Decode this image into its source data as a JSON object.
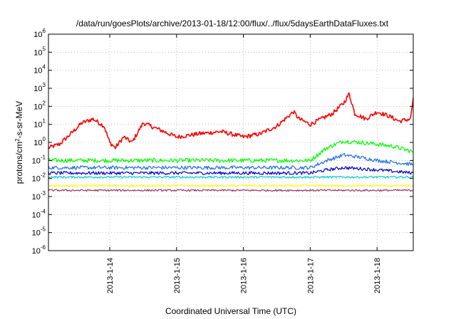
{
  "chart_data": {
    "type": "line",
    "title": "/data/run/goesPlots/archive/2013-01-18/12:00/flux/../flux/5daysEarthDataFluxes.txt",
    "xlabel": "Coordinated Universal Time (UTC)",
    "ylabel": {
      "pre": "protons/cm",
      "sup": "2",
      "post": "-s-sr-MeV"
    },
    "x_scale": "date",
    "y_scale": "log",
    "xlim": [
      "2013-01-13 02:00",
      "2013-01-18 13:00"
    ],
    "ylim": [
      1e-06,
      1000000.0
    ],
    "grid": true,
    "legend": "none",
    "x_ticks": [
      "2013-1-14",
      "2013-1-15",
      "2013-1-16",
      "2013-1-17",
      "2013-1-18"
    ],
    "y_ticks": [
      {
        "base": "10",
        "exp": "-6"
      },
      {
        "base": "10",
        "exp": "-5"
      },
      {
        "base": "10",
        "exp": "-4"
      },
      {
        "base": "10",
        "exp": "-3"
      },
      {
        "base": "10",
        "exp": "-2"
      },
      {
        "base": "10",
        "exp": "-1"
      },
      {
        "base": "10",
        "exp": "0"
      },
      {
        "base": "10",
        "exp": "1"
      },
      {
        "base": "10",
        "exp": "2"
      },
      {
        "base": "10",
        "exp": "3"
      },
      {
        "base": "10",
        "exp": "4"
      },
      {
        "base": "10",
        "exp": "5"
      },
      {
        "base": "10",
        "exp": "6"
      }
    ],
    "series": [
      {
        "color": "#ff0000",
        "x": [
          "2013-01-13 02:00",
          "2013-01-13 06:00",
          "2013-01-13 10:00",
          "2013-01-13 14:00",
          "2013-01-13 18:00",
          "2013-01-13 22:00",
          "2013-01-14 00:00",
          "2013-01-14 02:00",
          "2013-01-14 05:00",
          "2013-01-14 08:00",
          "2013-01-14 12:00",
          "2013-01-14 18:00",
          "2013-01-15 00:00",
          "2013-01-15 08:00",
          "2013-01-15 16:00",
          "2013-01-16 00:00",
          "2013-01-16 06:00",
          "2013-01-16 12:00",
          "2013-01-16 18:00",
          "2013-01-16 20:00",
          "2013-01-17 00:00",
          "2013-01-17 04:00",
          "2013-01-17 08:00",
          "2013-01-17 12:00",
          "2013-01-17 14:00",
          "2013-01-17 16:00",
          "2013-01-17 20:00",
          "2013-01-18 00:00",
          "2013-01-18 04:00",
          "2013-01-18 08:00",
          "2013-01-18 12:00",
          "2013-01-18 13:00"
        ],
        "y": [
          0.5,
          0.8,
          3,
          12,
          20,
          8,
          1,
          0.5,
          2,
          1,
          12,
          5,
          2,
          3,
          4,
          2,
          3,
          8,
          50,
          20,
          10,
          20,
          40,
          150,
          500,
          40,
          20,
          50,
          30,
          15,
          20,
          300
        ]
      },
      {
        "color": "#00ff00",
        "x": [
          "2013-01-13 02:00",
          "2013-01-13 12:00",
          "2013-01-14 00:00",
          "2013-01-14 12:00",
          "2013-01-15 00:00",
          "2013-01-15 12:00",
          "2013-01-16 00:00",
          "2013-01-16 12:00",
          "2013-01-17 00:00",
          "2013-01-17 06:00",
          "2013-01-17 12:00",
          "2013-01-17 18:00",
          "2013-01-18 00:00",
          "2013-01-18 06:00",
          "2013-01-18 13:00"
        ],
        "y": [
          0.1,
          0.1,
          0.1,
          0.1,
          0.1,
          0.1,
          0.1,
          0.1,
          0.1,
          0.5,
          1.2,
          1.0,
          0.8,
          0.6,
          0.3
        ]
      },
      {
        "color": "#1e6fe6",
        "x": [
          "2013-01-13 02:00",
          "2013-01-13 12:00",
          "2013-01-14 00:00",
          "2013-01-14 12:00",
          "2013-01-15 00:00",
          "2013-01-15 12:00",
          "2013-01-16 00:00",
          "2013-01-16 12:00",
          "2013-01-17 00:00",
          "2013-01-17 06:00",
          "2013-01-17 12:00",
          "2013-01-17 18:00",
          "2013-01-18 00:00",
          "2013-01-18 06:00",
          "2013-01-18 13:00"
        ],
        "y": [
          0.04,
          0.04,
          0.04,
          0.04,
          0.04,
          0.04,
          0.04,
          0.04,
          0.04,
          0.1,
          0.2,
          0.15,
          0.1,
          0.08,
          0.06
        ]
      },
      {
        "color": "#0000cc",
        "x": [
          "2013-01-13 02:00",
          "2013-01-13 12:00",
          "2013-01-14 00:00",
          "2013-01-14 12:00",
          "2013-01-15 00:00",
          "2013-01-15 12:00",
          "2013-01-16 00:00",
          "2013-01-16 12:00",
          "2013-01-17 00:00",
          "2013-01-17 06:00",
          "2013-01-17 12:00",
          "2013-01-17 18:00",
          "2013-01-18 00:00",
          "2013-01-18 06:00",
          "2013-01-18 13:00"
        ],
        "y": [
          0.02,
          0.02,
          0.02,
          0.02,
          0.02,
          0.02,
          0.02,
          0.02,
          0.02,
          0.03,
          0.04,
          0.035,
          0.03,
          0.025,
          0.02
        ]
      },
      {
        "color": "#00cccc",
        "x": [
          "2013-01-13 02:00",
          "2013-01-14 00:00",
          "2013-01-15 00:00",
          "2013-01-16 00:00",
          "2013-01-17 00:00",
          "2013-01-18 00:00",
          "2013-01-18 13:00"
        ],
        "y": [
          0.012,
          0.012,
          0.012,
          0.012,
          0.012,
          0.012,
          0.012
        ]
      },
      {
        "color": "#ffff00",
        "x": [
          "2013-01-13 02:00",
          "2013-01-14 00:00",
          "2013-01-15 00:00",
          "2013-01-16 00:00",
          "2013-01-17 00:00",
          "2013-01-18 00:00",
          "2013-01-18 13:00"
        ],
        "y": [
          0.004,
          0.004,
          0.004,
          0.004,
          0.004,
          0.004,
          0.004
        ]
      },
      {
        "color": "#993366",
        "x": [
          "2013-01-13 02:00",
          "2013-01-14 00:00",
          "2013-01-15 00:00",
          "2013-01-16 00:00",
          "2013-01-17 00:00",
          "2013-01-18 00:00",
          "2013-01-18 13:00"
        ],
        "y": [
          0.0022,
          0.0022,
          0.0022,
          0.0022,
          0.0022,
          0.0022,
          0.0022
        ]
      }
    ]
  }
}
